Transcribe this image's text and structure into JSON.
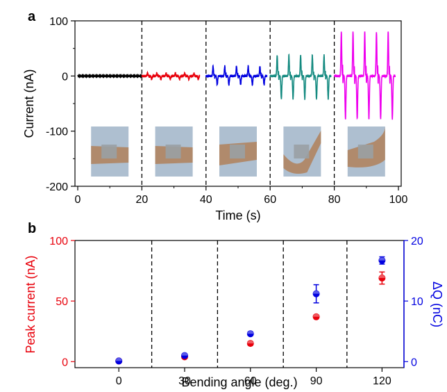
{
  "chart_data": [
    {
      "panel": "a",
      "type": "line",
      "xlabel": "Time (s)",
      "ylabel": "Current (nA)",
      "xlim": [
        0,
        100
      ],
      "ylim": [
        -200,
        100
      ],
      "xticks": [
        "0",
        "20",
        "40",
        "60",
        "80",
        "100"
      ],
      "yticks": [
        "100",
        "0",
        "-100",
        "-200"
      ],
      "dividers_x": [
        20,
        40,
        60,
        80
      ],
      "series": [
        {
          "segment": [
            0,
            20
          ],
          "amplitude_pos": 0.5,
          "amplitude_neg": 0.5,
          "pulses": 0,
          "color": "#000000"
        },
        {
          "segment": [
            20,
            38
          ],
          "amplitude_pos": 5,
          "amplitude_neg": 6,
          "pulses": 6,
          "color": "#e8000b"
        },
        {
          "segment": [
            40,
            59
          ],
          "amplitude_pos": 18,
          "amplitude_neg": 16,
          "pulses": 5,
          "color": "#0000e0"
        },
        {
          "segment": [
            60,
            79
          ],
          "amplitude_pos": 38,
          "amplitude_neg": 42,
          "pulses": 5,
          "color": "#148a80"
        },
        {
          "segment": [
            80,
            99
          ],
          "amplitude_pos": 80,
          "amplitude_neg": 78,
          "pulses": 5,
          "color": "#ee00ee"
        }
      ],
      "photos": 5
    },
    {
      "panel": "b",
      "type": "scatter",
      "xlabel": "Bending angle (deg.)",
      "ylabel": "Peak current (nA)",
      "ylabel_right": "ΔQ (nC)",
      "xlim": [
        -20,
        130
      ],
      "ylim": [
        -5,
        100
      ],
      "ylim_right": [
        -1,
        20
      ],
      "xticks": [
        "0",
        "30",
        "60",
        "90",
        "120"
      ],
      "yticks": [
        "100",
        "50",
        "0"
      ],
      "yticks_right": [
        "20",
        "10",
        "0"
      ],
      "dividers_x": [
        15,
        45,
        75,
        104
      ],
      "categories": [
        0,
        30,
        60,
        90,
        120
      ],
      "series": [
        {
          "axis": "left",
          "color": "#e8000b",
          "values": [
            0.5,
            4,
            15,
            37,
            69
          ],
          "errors": [
            0.5,
            1,
            1.5,
            1.5,
            5
          ]
        },
        {
          "axis": "right",
          "color": "#0000e0",
          "values": [
            0.1,
            1.0,
            4.6,
            11.2,
            16.7
          ],
          "errors": [
            0.1,
            0.2,
            0.3,
            1.5,
            0.6
          ]
        }
      ]
    }
  ],
  "colors": {
    "left_axis": "#e8000b",
    "right_axis": "#0000e0",
    "photo_bg": "#aebfd0",
    "skin": "#b08a6c",
    "patch": "#9aa0a4"
  }
}
